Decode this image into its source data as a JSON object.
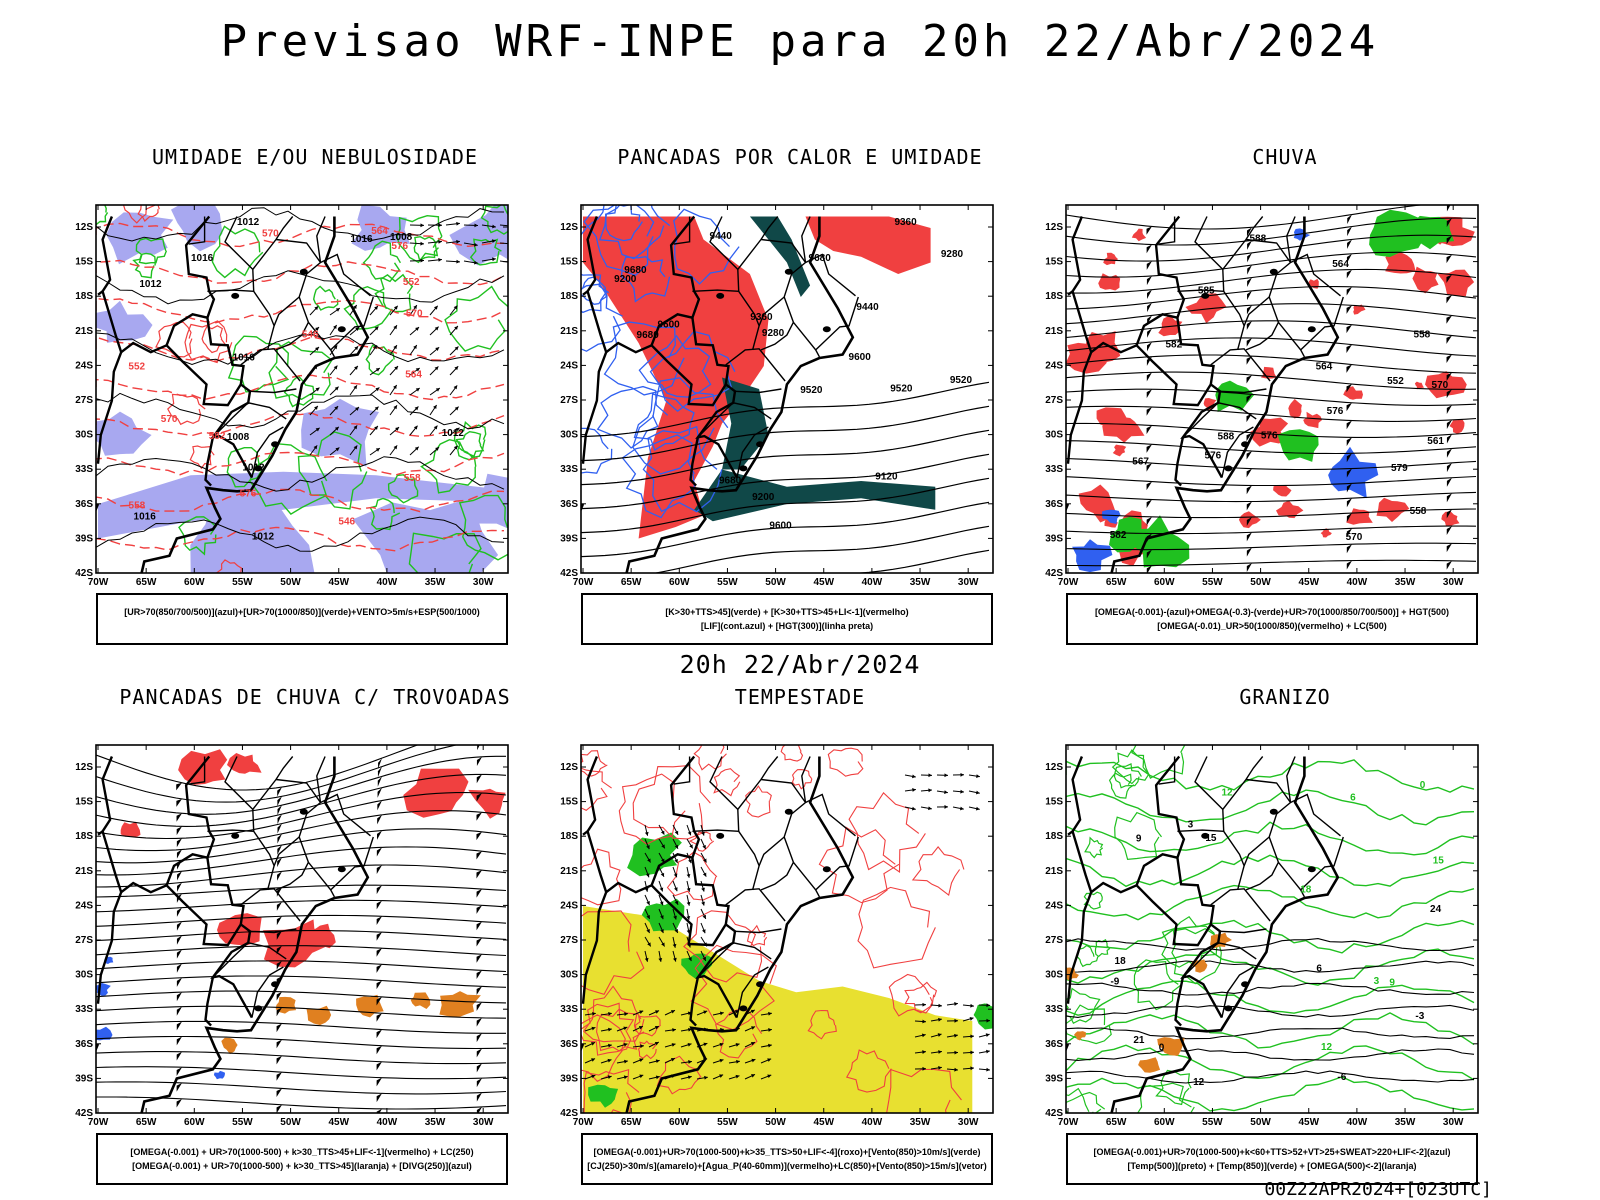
{
  "title": "Previsao WRF-INPE  para 20h 22/Abr/2024",
  "subtitle": "20h 22/Abr/2024",
  "footer": "00Z22APR2024+[023UTC]",
  "axis": {
    "lat_labels": [
      "12S",
      "15S",
      "18S",
      "21S",
      "24S",
      "27S",
      "30S",
      "33S",
      "36S",
      "39S",
      "42S"
    ],
    "lon_labels": [
      "70W",
      "65W",
      "60W",
      "55W",
      "50W",
      "45W",
      "40W",
      "35W",
      "30W"
    ]
  },
  "colors": {
    "green": "#20c020",
    "red": "#f04040",
    "blue": "#3060f0",
    "lavender": "#a8a8f0",
    "darkteal": "#104848",
    "yellow": "#e8e030",
    "orange": "#e08020",
    "black": "#000000"
  },
  "panels": [
    {
      "id": "umidade",
      "title": "UMIDADE E/OU NEBULOSIDADE",
      "legend": [
        "[UR>70(850/700/500)](azul)+[UR>70(1000/850)](verde)+VENTO>5m/s+ESP(500/1000)"
      ],
      "contour_labels": [
        "1012",
        "1008",
        "1016",
        "1012",
        "1016",
        "1012",
        "1008",
        "1012",
        "1016",
        "1016",
        "1012",
        "570",
        "576",
        "582",
        "564",
        "558",
        "552",
        "546",
        "570",
        "576",
        "570",
        "564",
        "558",
        "552",
        "546"
      ]
    },
    {
      "id": "pancadas-calor",
      "title": "PANCADAS POR CALOR E UMIDADE",
      "legend": [
        "[K>30+TTS>45](verde) + [K>30+TTS>45+LI<-1](vermelho)",
        "[LIF](cont.azul) + [HGT(300)](linha preta)"
      ],
      "contour_labels": [
        "9680",
        "9680",
        "9680",
        "9600",
        "9600",
        "9520",
        "9520",
        "9440",
        "9440",
        "9360",
        "9360",
        "9280",
        "9280",
        "9200",
        "9120",
        "9200",
        "9680",
        "9600",
        "9520"
      ]
    },
    {
      "id": "chuva",
      "title": "CHUVA",
      "legend": [
        "[OMEGA(-0.001)-(azul)+OMEGA(-0.3)-(verde)+UR>70(1000/850/700/500)] + HGT(500)",
        "[OMEGA(-0.01)_UR>50(1000/850)(vermelho) + LC(500)"
      ],
      "contour_labels": [
        "588",
        "582",
        "576",
        "570",
        "564",
        "558",
        "552",
        "579",
        "576",
        "570",
        "567",
        "561",
        "564",
        "558",
        "576",
        "582",
        "585",
        "588"
      ]
    },
    {
      "id": "pancadas-trovoadas",
      "title": "PANCADAS DE CHUVA C/ TROVOADAS",
      "legend": [
        "[OMEGA(-0.001) + UR>70(1000-500) + k>30_TTS>45+LIF<-1](vermelho) + LC(250)",
        "[OMEGA(-0.001) + UR>70(1000-500) + k>30_TTS>45](laranja) + [DIVG(250)](azul)"
      ],
      "contour_labels": []
    },
    {
      "id": "tempestade",
      "title": "TEMPESTADE",
      "legend": [
        "[OMEGA(-0.001)+UR>70(1000-500)+k>35_TTS>50+LIF<-4](roxo)+[Vento(850)>10m/s](verde)",
        "[CJ(250)>30m/s](amarelo)+[Agua_P(40-60mm)](vermelho)+LC(850)+[Vento(850)>15m/s](vetor)"
      ],
      "contour_labels": []
    },
    {
      "id": "granizo",
      "title": "GRANIZO",
      "legend": [
        "[OMEGA(-0.001)+UR>70(1000-500)+k<60+TTS>52+VT>25+SWEAT>220+LIF<-2](azul)",
        "[Temp(500)](preto) + [Temp(850)](verde) + [OMEGA(500)<-2](laranja)"
      ],
      "contour_labels": [
        "-9",
        "-6",
        "-3",
        "0",
        "3",
        "6",
        "9",
        "12",
        "15",
        "18",
        "21",
        "24",
        "12",
        "15",
        "18",
        "12",
        "9",
        "6",
        "3",
        "0"
      ]
    }
  ]
}
